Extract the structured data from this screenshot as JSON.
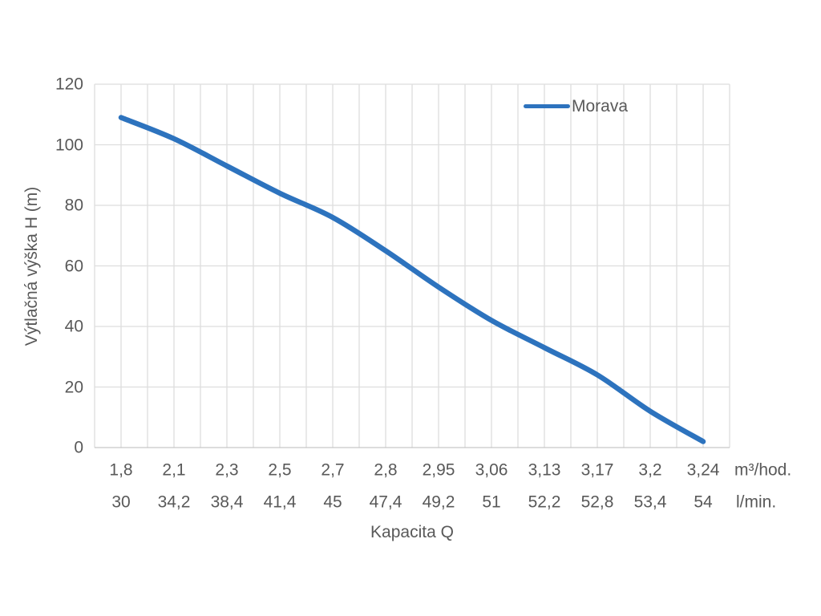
{
  "chart_data": {
    "type": "line",
    "title": "",
    "series": [
      {
        "name": "Morava",
        "color": "#2D73BE",
        "values": [
          109,
          102,
          93,
          84,
          76,
          65,
          53,
          42,
          33,
          24,
          12,
          2
        ]
      }
    ],
    "categories": [
      "1,8",
      "2,1",
      "2,3",
      "2,5",
      "2,7",
      "2,8",
      "2,95",
      "3,06",
      "3,13",
      "3,17",
      "3,2",
      "3,24"
    ],
    "categories_secondary": [
      "30",
      "34,2",
      "38,4",
      "41,4",
      "45",
      "47,4",
      "49,2",
      "51",
      "52,2",
      "52,8",
      "53,4",
      "54"
    ],
    "category_unit_primary": "m³/hod.",
    "category_unit_secondary": "l/min.",
    "xlabel": "Kapacita Q",
    "ylabel": "Výtlačná výška H (m)",
    "y_ticks": [
      0,
      20,
      40,
      60,
      80,
      100,
      120
    ],
    "ylim": [
      0,
      120
    ],
    "grid": true,
    "legend_position": "top-right",
    "colors": {
      "text": "#595959",
      "gridline": "#DDDDDD",
      "axis_line": "#C6C6C6",
      "series": "#2D73BE",
      "background": "#FFFFFF"
    }
  }
}
